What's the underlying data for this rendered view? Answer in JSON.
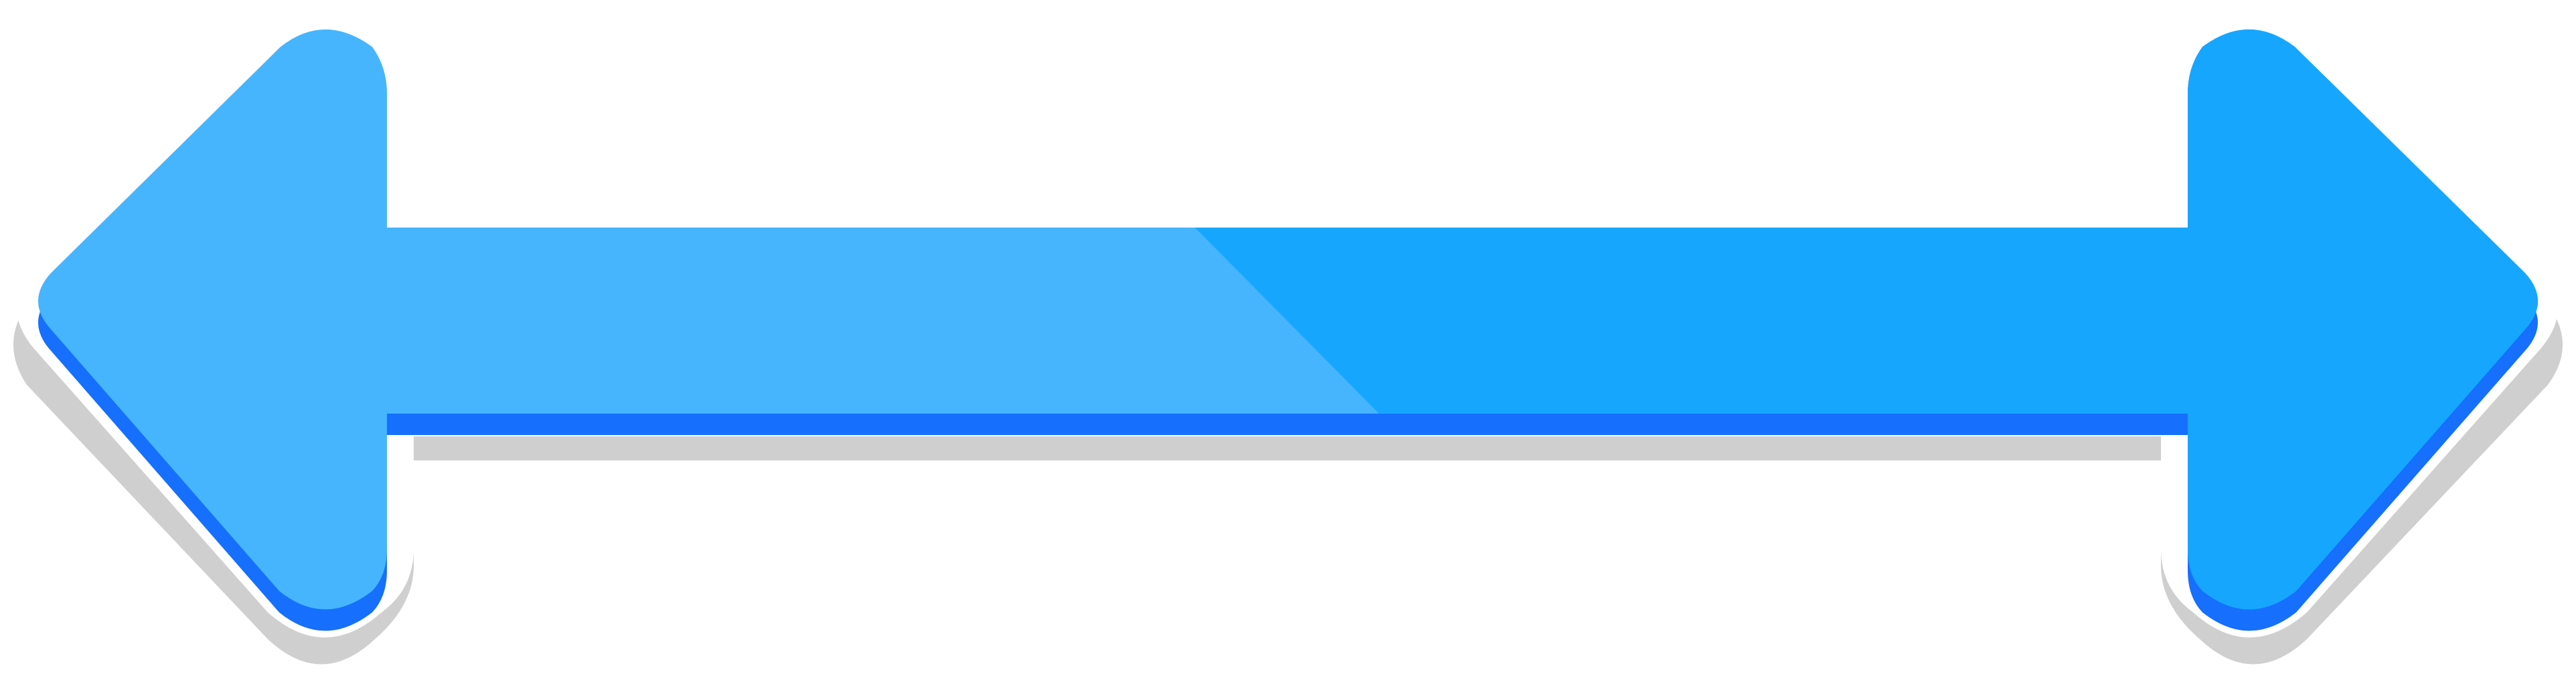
{
  "graphic": {
    "name": "double-headed-arrow",
    "colors": {
      "background": "#ffffff",
      "light_blue": "#46b5fd",
      "bright_blue": "#17a6fe",
      "shadow_blue": "#166ffd",
      "gray_shadow": "#cfcfcf",
      "outline_white": "#ffffff"
    }
  }
}
